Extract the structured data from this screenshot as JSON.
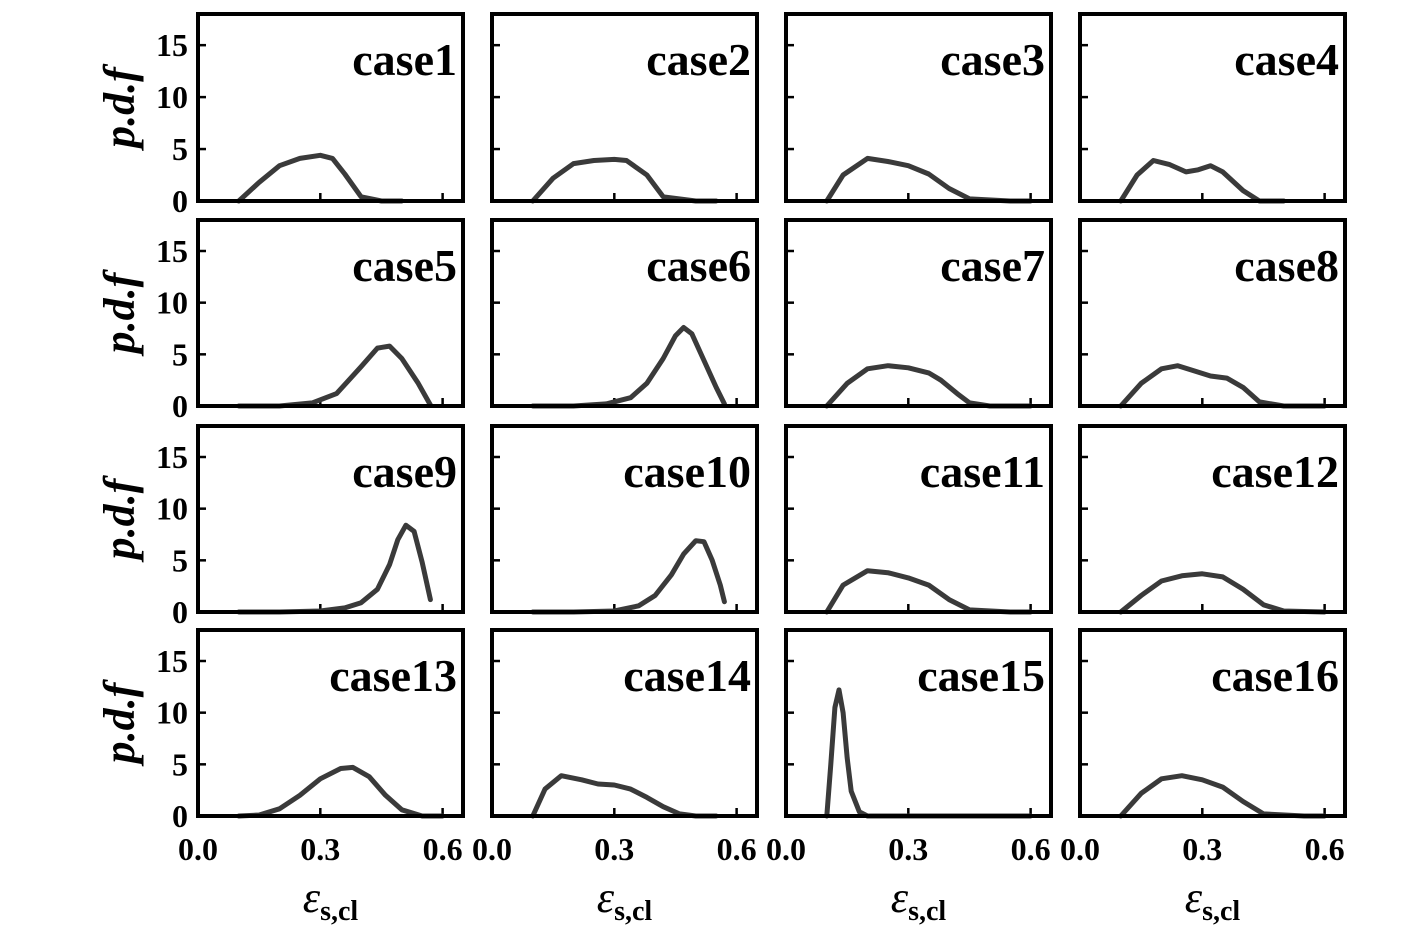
{
  "chart_data": {
    "type": "line",
    "layout": "4x4 grid of small multiples",
    "ylabel": "p.d.f",
    "xlabel_base": "ε",
    "xlabel_sub": "s,cl",
    "xlim": [
      0.0,
      0.65
    ],
    "ylim": [
      0,
      18
    ],
    "xticks": [
      0.0,
      0.3,
      0.6
    ],
    "xtick_labels": [
      "0.0",
      "0.3",
      "0.6"
    ],
    "yticks": [
      0,
      5,
      10,
      15
    ],
    "ytick_labels": [
      "0",
      "5",
      "10",
      "15"
    ],
    "grid": false,
    "panels": [
      {
        "title": "case1",
        "x": [
          0.1,
          0.15,
          0.2,
          0.25,
          0.3,
          0.33,
          0.36,
          0.4,
          0.45,
          0.5
        ],
        "y": [
          0,
          1.8,
          3.4,
          4.1,
          4.4,
          4.1,
          2.6,
          0.4,
          0,
          0
        ]
      },
      {
        "title": "case2",
        "x": [
          0.1,
          0.15,
          0.2,
          0.25,
          0.3,
          0.33,
          0.38,
          0.42,
          0.5,
          0.55
        ],
        "y": [
          0,
          2.2,
          3.6,
          3.9,
          4.0,
          3.9,
          2.5,
          0.4,
          0,
          0
        ]
      },
      {
        "title": "case3",
        "x": [
          0.1,
          0.14,
          0.2,
          0.25,
          0.3,
          0.35,
          0.4,
          0.45,
          0.55,
          0.6
        ],
        "y": [
          0,
          2.5,
          4.1,
          3.8,
          3.4,
          2.6,
          1.2,
          0.2,
          0,
          0
        ]
      },
      {
        "title": "case4",
        "x": [
          0.1,
          0.14,
          0.18,
          0.22,
          0.26,
          0.29,
          0.32,
          0.35,
          0.4,
          0.44,
          0.5
        ],
        "y": [
          0,
          2.5,
          3.9,
          3.5,
          2.8,
          3.0,
          3.4,
          2.8,
          1.0,
          0,
          0
        ]
      },
      {
        "title": "case5",
        "x": [
          0.1,
          0.2,
          0.28,
          0.34,
          0.4,
          0.44,
          0.47,
          0.5,
          0.54,
          0.57
        ],
        "y": [
          0,
          0,
          0.3,
          1.2,
          3.8,
          5.6,
          5.8,
          4.6,
          2.2,
          0.1
        ]
      },
      {
        "title": "case6",
        "x": [
          0.1,
          0.2,
          0.28,
          0.34,
          0.38,
          0.42,
          0.45,
          0.47,
          0.49,
          0.52,
          0.55,
          0.57
        ],
        "y": [
          0,
          0,
          0.2,
          0.8,
          2.2,
          4.6,
          6.8,
          7.6,
          7.0,
          4.4,
          1.8,
          0.2
        ]
      },
      {
        "title": "case7",
        "x": [
          0.1,
          0.15,
          0.2,
          0.25,
          0.3,
          0.35,
          0.38,
          0.42,
          0.45,
          0.5,
          0.6
        ],
        "y": [
          0,
          2.2,
          3.6,
          3.9,
          3.7,
          3.2,
          2.5,
          1.2,
          0.3,
          0,
          0
        ]
      },
      {
        "title": "case8",
        "x": [
          0.1,
          0.15,
          0.2,
          0.24,
          0.28,
          0.32,
          0.36,
          0.4,
          0.44,
          0.5,
          0.6
        ],
        "y": [
          0,
          2.2,
          3.6,
          3.9,
          3.4,
          2.9,
          2.7,
          1.8,
          0.4,
          0,
          0
        ]
      },
      {
        "title": "case9",
        "x": [
          0.1,
          0.2,
          0.3,
          0.36,
          0.4,
          0.44,
          0.47,
          0.49,
          0.51,
          0.53,
          0.55,
          0.57
        ],
        "y": [
          0,
          0,
          0.1,
          0.4,
          0.9,
          2.2,
          4.6,
          7.0,
          8.4,
          7.8,
          4.8,
          1.2
        ]
      },
      {
        "title": "case10",
        "x": [
          0.1,
          0.2,
          0.3,
          0.36,
          0.4,
          0.44,
          0.47,
          0.5,
          0.52,
          0.54,
          0.56,
          0.57
        ],
        "y": [
          0,
          0,
          0.1,
          0.6,
          1.6,
          3.6,
          5.6,
          6.9,
          6.8,
          5.0,
          2.6,
          1.0
        ]
      },
      {
        "title": "case11",
        "x": [
          0.1,
          0.14,
          0.2,
          0.25,
          0.3,
          0.35,
          0.4,
          0.45,
          0.55,
          0.6
        ],
        "y": [
          0,
          2.6,
          4.0,
          3.8,
          3.3,
          2.6,
          1.2,
          0.2,
          0,
          0
        ]
      },
      {
        "title": "case12",
        "x": [
          0.1,
          0.15,
          0.2,
          0.25,
          0.3,
          0.35,
          0.4,
          0.45,
          0.5,
          0.6
        ],
        "y": [
          0,
          1.6,
          3.0,
          3.5,
          3.7,
          3.4,
          2.2,
          0.7,
          0.1,
          0
        ]
      },
      {
        "title": "case13",
        "x": [
          0.1,
          0.15,
          0.2,
          0.25,
          0.3,
          0.35,
          0.38,
          0.42,
          0.46,
          0.5,
          0.55,
          0.6
        ],
        "y": [
          0,
          0.1,
          0.7,
          2.0,
          3.6,
          4.6,
          4.7,
          3.8,
          2.0,
          0.6,
          0,
          0
        ]
      },
      {
        "title": "case14",
        "x": [
          0.1,
          0.13,
          0.17,
          0.22,
          0.26,
          0.3,
          0.34,
          0.38,
          0.42,
          0.46,
          0.5,
          0.55
        ],
        "y": [
          0,
          2.6,
          3.9,
          3.5,
          3.1,
          3.0,
          2.6,
          1.8,
          0.9,
          0.2,
          0,
          0
        ]
      },
      {
        "title": "case15",
        "x": [
          0.1,
          0.11,
          0.12,
          0.13,
          0.14,
          0.15,
          0.16,
          0.18,
          0.2,
          0.3,
          0.5,
          0.6
        ],
        "y": [
          0,
          5.0,
          10.5,
          12.2,
          10.0,
          5.6,
          2.4,
          0.4,
          0,
          0,
          0,
          0
        ]
      },
      {
        "title": "case16",
        "x": [
          0.1,
          0.15,
          0.2,
          0.25,
          0.3,
          0.35,
          0.4,
          0.45,
          0.55,
          0.6
        ],
        "y": [
          0,
          2.2,
          3.6,
          3.9,
          3.5,
          2.8,
          1.4,
          0.2,
          0,
          0
        ]
      }
    ]
  }
}
